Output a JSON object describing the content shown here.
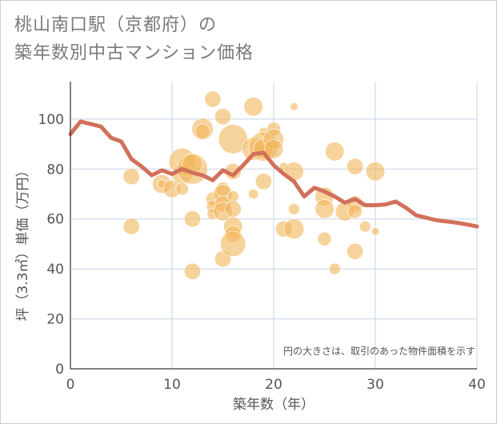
{
  "chart_data": {
    "type": "scatter",
    "title": [
      "桃山南口駅（京都府）の",
      "築年数別中古マンション価格"
    ],
    "xlabel": "築年数（年）",
    "ylabel": "坪（3.3㎡）単価（万円）",
    "xlim": [
      0,
      40
    ],
    "ylim": [
      0,
      115
    ],
    "xticks": [
      0,
      10,
      20,
      30,
      40
    ],
    "yticks": [
      0,
      20,
      40,
      60,
      80,
      100
    ],
    "grid": true,
    "annotation": "円の大きさは、取引のあった物件面積を示す",
    "colors": {
      "bubble": "#f2b55a",
      "line": "#d2705a",
      "grid": "#c8d4e6"
    },
    "series": [
      {
        "kind": "bubble",
        "points": [
          {
            "x": 6,
            "y": 77,
            "s": 0.45
          },
          {
            "x": 6,
            "y": 57,
            "s": 0.45
          },
          {
            "x": 9,
            "y": 74,
            "s": 0.55
          },
          {
            "x": 9,
            "y": 74,
            "s": 0.15
          },
          {
            "x": 10,
            "y": 72,
            "s": 0.5
          },
          {
            "x": 11,
            "y": 83,
            "s": 0.85
          },
          {
            "x": 11,
            "y": 78,
            "s": 0.6
          },
          {
            "x": 11,
            "y": 72,
            "s": 0.3
          },
          {
            "x": 12,
            "y": 80,
            "s": 1.0
          },
          {
            "x": 12,
            "y": 82,
            "s": 0.6
          },
          {
            "x": 12,
            "y": 60,
            "s": 0.45
          },
          {
            "x": 12,
            "y": 39,
            "s": 0.45
          },
          {
            "x": 13,
            "y": 96,
            "s": 0.65
          },
          {
            "x": 13,
            "y": 95,
            "s": 0.4
          },
          {
            "x": 14,
            "y": 108,
            "s": 0.45
          },
          {
            "x": 14,
            "y": 68,
            "s": 0.35
          },
          {
            "x": 14,
            "y": 65,
            "s": 0.3
          },
          {
            "x": 14,
            "y": 62,
            "s": 0.25
          },
          {
            "x": 15,
            "y": 101,
            "s": 0.45
          },
          {
            "x": 15,
            "y": 72,
            "s": 0.35
          },
          {
            "x": 15,
            "y": 70,
            "s": 0.55
          },
          {
            "x": 15,
            "y": 66,
            "s": 0.45
          },
          {
            "x": 15,
            "y": 63,
            "s": 0.55
          },
          {
            "x": 15,
            "y": 44,
            "s": 0.45
          },
          {
            "x": 16,
            "y": 92,
            "s": 0.95
          },
          {
            "x": 16,
            "y": 79,
            "s": 0.45
          },
          {
            "x": 16,
            "y": 69,
            "s": 0.25
          },
          {
            "x": 16,
            "y": 64,
            "s": 0.45
          },
          {
            "x": 16,
            "y": 57,
            "s": 0.55
          },
          {
            "x": 16,
            "y": 54,
            "s": 0.45
          },
          {
            "x": 16,
            "y": 50,
            "s": 0.8
          },
          {
            "x": 18,
            "y": 105,
            "s": 0.55
          },
          {
            "x": 18,
            "y": 88,
            "s": 0.7
          },
          {
            "x": 18,
            "y": 70,
            "s": 0.2
          },
          {
            "x": 19,
            "y": 95,
            "s": 0.15
          },
          {
            "x": 19,
            "y": 89,
            "s": 0.95
          },
          {
            "x": 19,
            "y": 88,
            "s": 0.6
          },
          {
            "x": 19,
            "y": 75,
            "s": 0.45
          },
          {
            "x": 20,
            "y": 96,
            "s": 0.35
          },
          {
            "x": 20,
            "y": 92,
            "s": 0.6
          },
          {
            "x": 20,
            "y": 88,
            "s": 0.55
          },
          {
            "x": 21,
            "y": 81,
            "s": 0.15
          },
          {
            "x": 21,
            "y": 56,
            "s": 0.45
          },
          {
            "x": 22,
            "y": 105,
            "s": 0.12
          },
          {
            "x": 22,
            "y": 79,
            "s": 0.55
          },
          {
            "x": 22,
            "y": 64,
            "s": 0.25
          },
          {
            "x": 22,
            "y": 56,
            "s": 0.6
          },
          {
            "x": 25,
            "y": 69,
            "s": 0.55
          },
          {
            "x": 25,
            "y": 64,
            "s": 0.55
          },
          {
            "x": 25,
            "y": 52,
            "s": 0.35
          },
          {
            "x": 26,
            "y": 87,
            "s": 0.55
          },
          {
            "x": 26,
            "y": 40,
            "s": 0.25
          },
          {
            "x": 27,
            "y": 63,
            "s": 0.55
          },
          {
            "x": 28,
            "y": 81,
            "s": 0.45
          },
          {
            "x": 28,
            "y": 66,
            "s": 0.45
          },
          {
            "x": 28,
            "y": 63,
            "s": 0.35
          },
          {
            "x": 28,
            "y": 47,
            "s": 0.45
          },
          {
            "x": 29,
            "y": 57,
            "s": 0.25
          },
          {
            "x": 30,
            "y": 79,
            "s": 0.55
          },
          {
            "x": 30,
            "y": 55,
            "s": 0.12
          }
        ]
      },
      {
        "kind": "line",
        "x": [
          0,
          1,
          2,
          3,
          4,
          5,
          6,
          7,
          8,
          9,
          10,
          11,
          12,
          13,
          14,
          15,
          16,
          17,
          18,
          19,
          20,
          21,
          22,
          23,
          24,
          25,
          26,
          27,
          28,
          29,
          30,
          31,
          32,
          33,
          34,
          35,
          36,
          37,
          38,
          39,
          40
        ],
        "y": [
          94,
          99,
          98,
          97,
          92.5,
          91,
          84,
          81,
          77.5,
          79.5,
          78,
          80,
          78.5,
          77.5,
          75.5,
          79.5,
          77.5,
          81.5,
          86,
          86.5,
          81.5,
          78,
          75,
          69,
          72.5,
          71,
          69,
          66.5,
          68,
          65.5,
          65.5,
          65.8,
          67,
          64.5,
          61.5,
          60.5,
          59.5,
          59,
          58.5,
          57.8,
          57
        ]
      }
    ]
  }
}
